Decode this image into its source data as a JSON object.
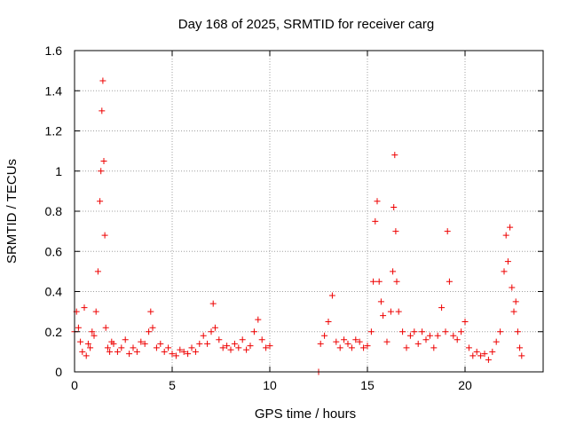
{
  "chart_data": {
    "type": "scatter",
    "title": "Day 168 of 2025, SRMTID for receiver carg",
    "xlabel": "GPS time / hours",
    "ylabel": "SRMTID / TECUs",
    "xlim": [
      0,
      24
    ],
    "ylim": [
      0,
      1.6
    ],
    "xticks": [
      0,
      5,
      10,
      15,
      20
    ],
    "xtick_labels": [
      "0",
      "5",
      "10",
      "15",
      "20"
    ],
    "yticks": [
      0,
      0.2,
      0.4,
      0.6,
      0.8,
      1,
      1.2,
      1.4,
      1.6
    ],
    "ytick_labels": [
      "0",
      "0.2",
      "0.4",
      "0.6",
      "0.8",
      "1",
      "1.2",
      "1.4",
      "1.6"
    ],
    "grid": true,
    "marker": "+",
    "colors": {
      "series": "#ee0000",
      "grid": "#a0a0a0",
      "frame": "#000000"
    },
    "series": [
      {
        "name": "SRMTID",
        "x": [
          0.0,
          0.1,
          0.2,
          0.3,
          0.4,
          0.5,
          0.6,
          0.7,
          0.8,
          0.9,
          1.0,
          1.1,
          1.2,
          1.3,
          1.35,
          1.4,
          1.45,
          1.5,
          1.55,
          1.6,
          1.7,
          1.8,
          1.9,
          2.0,
          2.2,
          2.4,
          2.6,
          2.8,
          3.0,
          3.2,
          3.4,
          3.6,
          3.8,
          3.9,
          4.0,
          4.2,
          4.4,
          4.6,
          4.8,
          5.0,
          5.2,
          5.4,
          5.6,
          5.8,
          6.0,
          6.2,
          6.4,
          6.6,
          6.8,
          7.0,
          7.1,
          7.2,
          7.4,
          7.6,
          7.8,
          8.0,
          8.2,
          8.4,
          8.6,
          8.8,
          9.0,
          9.2,
          9.4,
          9.6,
          9.8,
          10.0,
          12.5,
          12.6,
          12.8,
          13.0,
          13.2,
          13.4,
          13.6,
          13.8,
          14.0,
          14.2,
          14.4,
          14.6,
          14.8,
          15.0,
          15.2,
          15.3,
          15.4,
          15.5,
          15.6,
          15.7,
          15.8,
          16.0,
          16.2,
          16.3,
          16.35,
          16.4,
          16.45,
          16.5,
          16.6,
          16.8,
          17.0,
          17.2,
          17.4,
          17.6,
          17.8,
          18.0,
          18.2,
          18.4,
          18.6,
          18.8,
          19.0,
          19.1,
          19.2,
          19.4,
          19.6,
          19.8,
          20.0,
          20.2,
          20.4,
          20.6,
          20.8,
          21.0,
          21.2,
          21.4,
          21.6,
          21.8,
          22.0,
          22.1,
          22.2,
          22.3,
          22.4,
          22.5,
          22.6,
          22.7,
          22.8,
          22.9
        ],
        "y": [
          0.2,
          0.3,
          0.22,
          0.15,
          0.1,
          0.32,
          0.08,
          0.14,
          0.12,
          0.2,
          0.18,
          0.3,
          0.5,
          0.85,
          1.0,
          1.3,
          1.45,
          1.05,
          0.68,
          0.22,
          0.12,
          0.1,
          0.15,
          0.14,
          0.1,
          0.12,
          0.16,
          0.09,
          0.12,
          0.1,
          0.15,
          0.14,
          0.2,
          0.3,
          0.22,
          0.12,
          0.14,
          0.1,
          0.12,
          0.09,
          0.08,
          0.11,
          0.1,
          0.09,
          0.12,
          0.1,
          0.14,
          0.18,
          0.14,
          0.2,
          0.34,
          0.22,
          0.16,
          0.12,
          0.13,
          0.11,
          0.14,
          0.12,
          0.16,
          0.11,
          0.13,
          0.2,
          0.26,
          0.16,
          0.12,
          0.13,
          0.0,
          0.14,
          0.18,
          0.25,
          0.38,
          0.15,
          0.12,
          0.16,
          0.14,
          0.12,
          0.16,
          0.15,
          0.12,
          0.13,
          0.2,
          0.45,
          0.75,
          0.85,
          0.45,
          0.35,
          0.28,
          0.15,
          0.3,
          0.5,
          0.82,
          1.08,
          0.7,
          0.45,
          0.3,
          0.2,
          0.12,
          0.18,
          0.2,
          0.14,
          0.2,
          0.16,
          0.18,
          0.12,
          0.18,
          0.32,
          0.2,
          0.7,
          0.45,
          0.18,
          0.16,
          0.2,
          0.25,
          0.12,
          0.08,
          0.1,
          0.08,
          0.09,
          0.06,
          0.1,
          0.15,
          0.2,
          0.5,
          0.68,
          0.55,
          0.72,
          0.42,
          0.3,
          0.35,
          0.2,
          0.12,
          0.08
        ]
      }
    ]
  }
}
